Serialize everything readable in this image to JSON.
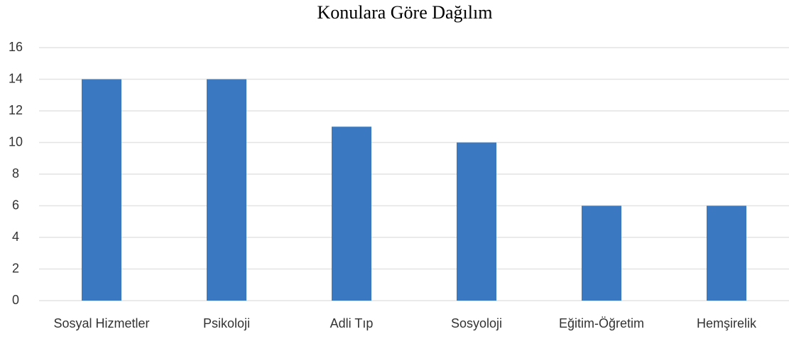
{
  "chart_data": {
    "type": "bar",
    "title": "Konulara Göre Dağılım",
    "categories": [
      "Sosyal Hizmetler",
      "Psikoloji",
      "Adli Tıp",
      "Sosyoloji",
      "Eğitim-Öğretim",
      "Hemşirelik"
    ],
    "values": [
      14,
      14,
      11,
      10,
      6,
      6
    ],
    "color": "#3a78c2",
    "ylim": [
      0,
      16
    ],
    "yticks": [
      0,
      2,
      4,
      6,
      8,
      10,
      12,
      14,
      16
    ],
    "grid": true
  }
}
